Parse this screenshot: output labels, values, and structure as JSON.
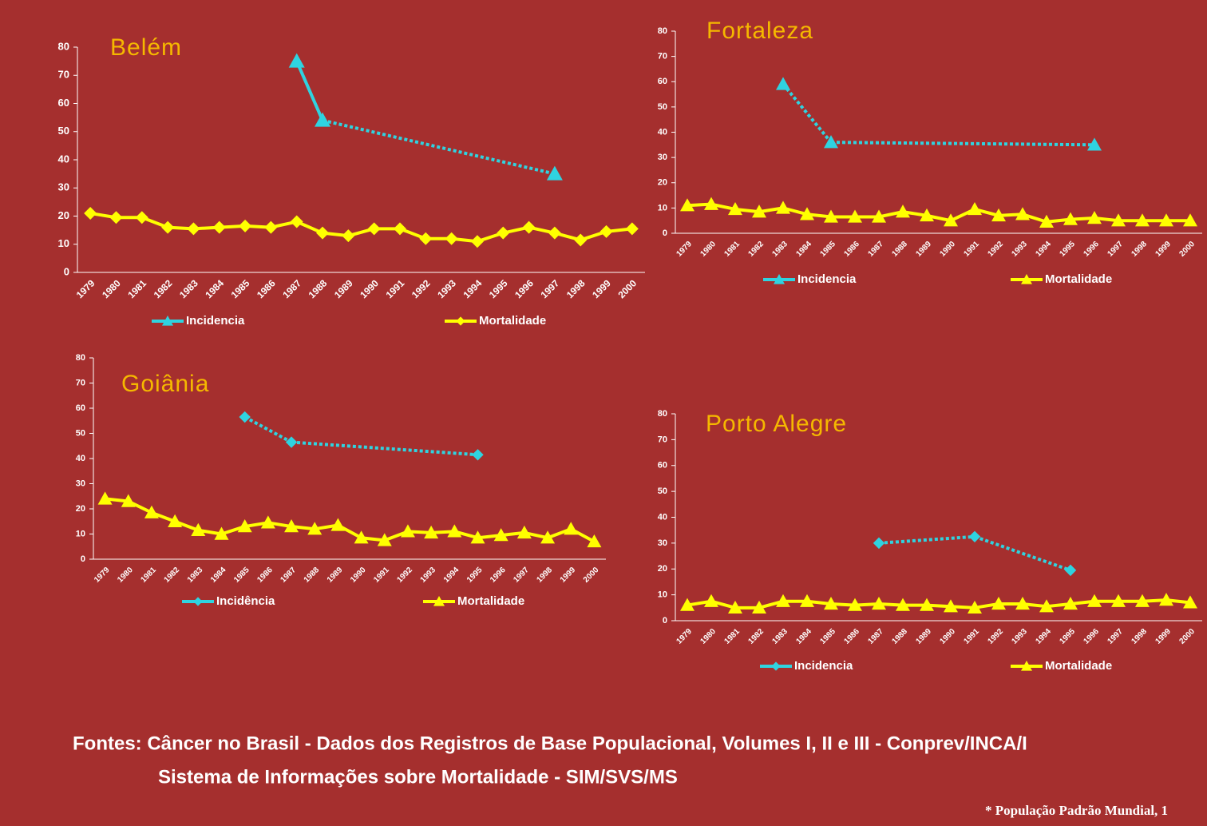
{
  "chart_data": [
    {
      "type": "line",
      "title": "Belém",
      "categories": [
        "1979",
        "1980",
        "1981",
        "1982",
        "1983",
        "1984",
        "1985",
        "1986",
        "1987",
        "1988",
        "1989",
        "1990",
        "1991",
        "1992",
        "1993",
        "1994",
        "1995",
        "1996",
        "1997",
        "1998",
        "1999",
        "2000"
      ],
      "series": [
        {
          "name": "Incidencia",
          "color": "#2fd3e0",
          "marker": "triangle",
          "values": [
            null,
            null,
            null,
            null,
            null,
            null,
            null,
            null,
            75,
            54,
            null,
            null,
            null,
            null,
            null,
            null,
            null,
            null,
            35,
            null,
            null,
            null
          ]
        },
        {
          "name": "Mortalidade",
          "color": "#ffff00",
          "marker": "diamond",
          "values": [
            21,
            19.5,
            19.5,
            16,
            15.5,
            16,
            16.5,
            16,
            18,
            14,
            13,
            15.5,
            15.5,
            12,
            12,
            11,
            14,
            16,
            14,
            11.5,
            14.5,
            15.5
          ]
        }
      ],
      "ylim": [
        0,
        80
      ],
      "yticks": [
        0,
        10,
        20,
        30,
        40,
        50,
        60,
        70,
        80
      ],
      "legend": "bottom"
    },
    {
      "type": "line",
      "title": "Fortaleza",
      "categories": [
        "1979",
        "1980",
        "1981",
        "1982",
        "1983",
        "1984",
        "1985",
        "1986",
        "1987",
        "1988",
        "1989",
        "1990",
        "1991",
        "1992",
        "1993",
        "1994",
        "1995",
        "1996",
        "1997",
        "1998",
        "1999",
        "2000"
      ],
      "series": [
        {
          "name": "Incidencia",
          "color": "#2fd3e0",
          "marker": "triangle",
          "values": [
            null,
            null,
            null,
            null,
            59,
            null,
            36,
            null,
            null,
            null,
            null,
            null,
            null,
            null,
            null,
            null,
            null,
            35,
            null,
            null,
            null,
            null
          ]
        },
        {
          "name": "Mortalidade",
          "color": "#ffff00",
          "marker": "triangle",
          "values": [
            11,
            11.5,
            9.5,
            8.5,
            10,
            7.5,
            6.5,
            6.5,
            6.5,
            8.5,
            7,
            5,
            9.5,
            7,
            7.5,
            4.5,
            5.5,
            6,
            5,
            5,
            5,
            5
          ]
        }
      ],
      "ylim": [
        0,
        80
      ],
      "yticks": [
        0,
        10,
        20,
        30,
        40,
        50,
        60,
        70,
        80
      ],
      "legend": "bottom"
    },
    {
      "type": "line",
      "title": "Goiânia",
      "categories": [
        "1979",
        "1980",
        "1981",
        "1982",
        "1983",
        "1984",
        "1985",
        "1986",
        "1987",
        "1988",
        "1989",
        "1990",
        "1991",
        "1992",
        "1993",
        "1994",
        "1995",
        "1996",
        "1997",
        "1998",
        "1999",
        "2000"
      ],
      "series": [
        {
          "name": "Incidência",
          "color": "#2fd3e0",
          "marker": "diamond",
          "values": [
            null,
            null,
            null,
            null,
            null,
            null,
            56.5,
            null,
            46.5,
            null,
            null,
            null,
            null,
            null,
            null,
            null,
            41.5,
            null,
            null,
            null,
            null,
            null
          ]
        },
        {
          "name": "Mortalidade",
          "color": "#ffff00",
          "marker": "triangle",
          "values": [
            24,
            23,
            18.5,
            15,
            11.5,
            10,
            13,
            14.5,
            13,
            12,
            13.5,
            8.5,
            7.5,
            11,
            10.5,
            11,
            8.5,
            9.5,
            10.5,
            8.5,
            12,
            7
          ]
        }
      ],
      "ylim": [
        0,
        80
      ],
      "yticks": [
        0,
        10,
        20,
        30,
        40,
        50,
        60,
        70,
        80
      ],
      "legend": "bottom"
    },
    {
      "type": "line",
      "title": "Porto Alegre",
      "categories": [
        "1979",
        "1980",
        "1981",
        "1982",
        "1983",
        "1984",
        "1985",
        "1986",
        "1987",
        "1988",
        "1989",
        "1990",
        "1991",
        "1992",
        "1993",
        "1994",
        "1995",
        "1996",
        "1997",
        "1998",
        "1999",
        "2000"
      ],
      "series": [
        {
          "name": "Incidencia",
          "color": "#2fd3e0",
          "marker": "diamond",
          "values": [
            null,
            null,
            null,
            null,
            null,
            null,
            null,
            null,
            30,
            null,
            null,
            null,
            32.5,
            null,
            null,
            null,
            19.5,
            null,
            null,
            null,
            null,
            null
          ]
        },
        {
          "name": "Mortalidade",
          "color": "#ffff00",
          "marker": "triangle",
          "values": [
            6,
            7.5,
            5,
            5,
            7.5,
            7.5,
            6.5,
            6,
            6.5,
            6,
            6,
            5.5,
            5,
            6.5,
            6.5,
            5.5,
            6.5,
            7.5,
            7.5,
            7.5,
            8,
            7
          ]
        }
      ],
      "ylim": [
        0,
        80
      ],
      "yticks": [
        0,
        10,
        20,
        30,
        40,
        50,
        60,
        70,
        80
      ],
      "legend": "bottom"
    }
  ],
  "footer": {
    "sources": [
      "Fontes: Câncer no Brasil - Dados dos Registros de Base Populacional, Volumes I, II e III  - Conprev/INCA/I",
      "Sistema de Informações sobre Mortalidade - SIM/SVS/MS"
    ],
    "note": "* População Padrão Mundial, 1"
  }
}
